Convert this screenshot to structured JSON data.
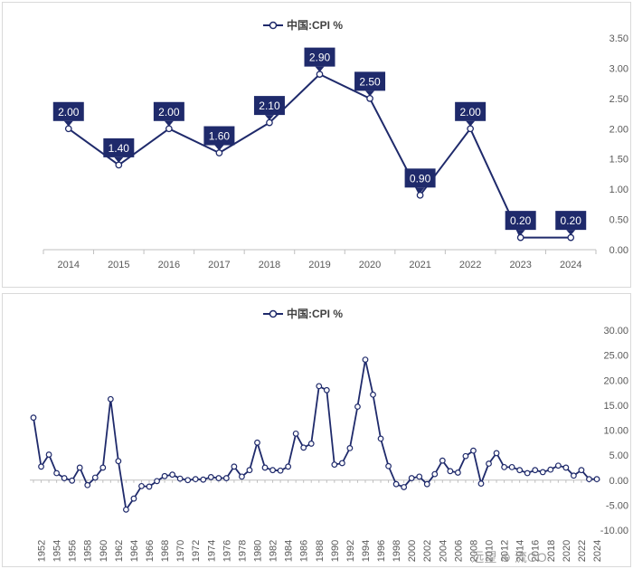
{
  "colors": {
    "series": "#1f2a6b",
    "axis": "#bfbfbf",
    "tick_text": "#595959",
    "label_bg": "#1f2a6b",
    "label_text": "#ffffff"
  },
  "watermark": "远望 ⊕ 流GO",
  "chart_data": [
    {
      "type": "line",
      "legend": "中国:CPI %",
      "legend_position": "top-center",
      "x": [
        "2014",
        "2015",
        "2016",
        "2017",
        "2018",
        "2019",
        "2020",
        "2021",
        "2022",
        "2023",
        "2024"
      ],
      "series": [
        {
          "name": "中国:CPI %",
          "values": [
            2.0,
            1.4,
            2.0,
            1.6,
            2.1,
            2.9,
            2.5,
            0.9,
            2.0,
            0.2,
            0.2
          ]
        }
      ],
      "data_labels": [
        "2.00",
        "1.40",
        "2.00",
        "1.60",
        "2.10",
        "2.90",
        "2.50",
        "0.90",
        "2.00",
        "0.20",
        "0.20"
      ],
      "ylim": [
        0,
        3.5
      ],
      "y_ticks": [
        "0.00",
        "0.50",
        "1.00",
        "1.50",
        "2.00",
        "2.50",
        "3.00",
        "3.50"
      ],
      "y_axis_side": "right",
      "grid": false
    },
    {
      "type": "line",
      "legend": "中国:CPI %",
      "legend_position": "top-center",
      "x_start": 1951,
      "x_end": 2024,
      "x_tick_labels": [
        "1952",
        "1954",
        "1956",
        "1958",
        "1960",
        "1962",
        "1964",
        "1966",
        "1968",
        "1970",
        "1972",
        "1974",
        "1976",
        "1978",
        "1980",
        "1982",
        "1984",
        "1986",
        "1988",
        "1990",
        "1992",
        "1994",
        "1996",
        "1998",
        "2000",
        "2002",
        "2004",
        "2006",
        "2008",
        "2010",
        "2012",
        "2014",
        "2016",
        "2018",
        "2020",
        "2022",
        "2024"
      ],
      "series": [
        {
          "name": "中国:CPI %",
          "values": [
            12.5,
            2.7,
            5.1,
            1.4,
            0.4,
            -0.1,
            2.5,
            -1.0,
            0.5,
            2.5,
            16.2,
            3.8,
            -5.9,
            -3.7,
            -1.2,
            -1.3,
            -0.2,
            0.8,
            1.1,
            0.3,
            0.0,
            0.2,
            0.1,
            0.6,
            0.4,
            0.4,
            2.7,
            0.7,
            2.0,
            7.5,
            2.5,
            2.0,
            1.9,
            2.7,
            9.3,
            6.5,
            7.3,
            18.8,
            18.0,
            3.1,
            3.4,
            6.4,
            14.7,
            24.1,
            17.1,
            8.3,
            2.8,
            -0.8,
            -1.4,
            0.4,
            0.7,
            -0.8,
            1.2,
            3.9,
            1.8,
            1.5,
            4.8,
            5.9,
            -0.7,
            3.3,
            5.4,
            2.6,
            2.6,
            2.0,
            1.4,
            2.0,
            1.6,
            2.1,
            2.9,
            2.5,
            0.9,
            2.0,
            0.2,
            0.2
          ]
        }
      ],
      "ylim": [
        -10,
        30
      ],
      "y_ticks": [
        "-10.00",
        "-5.00",
        "0.00",
        "5.00",
        "10.00",
        "15.00",
        "20.00",
        "25.00",
        "30.00"
      ],
      "y_axis_side": "right",
      "grid": false
    }
  ]
}
